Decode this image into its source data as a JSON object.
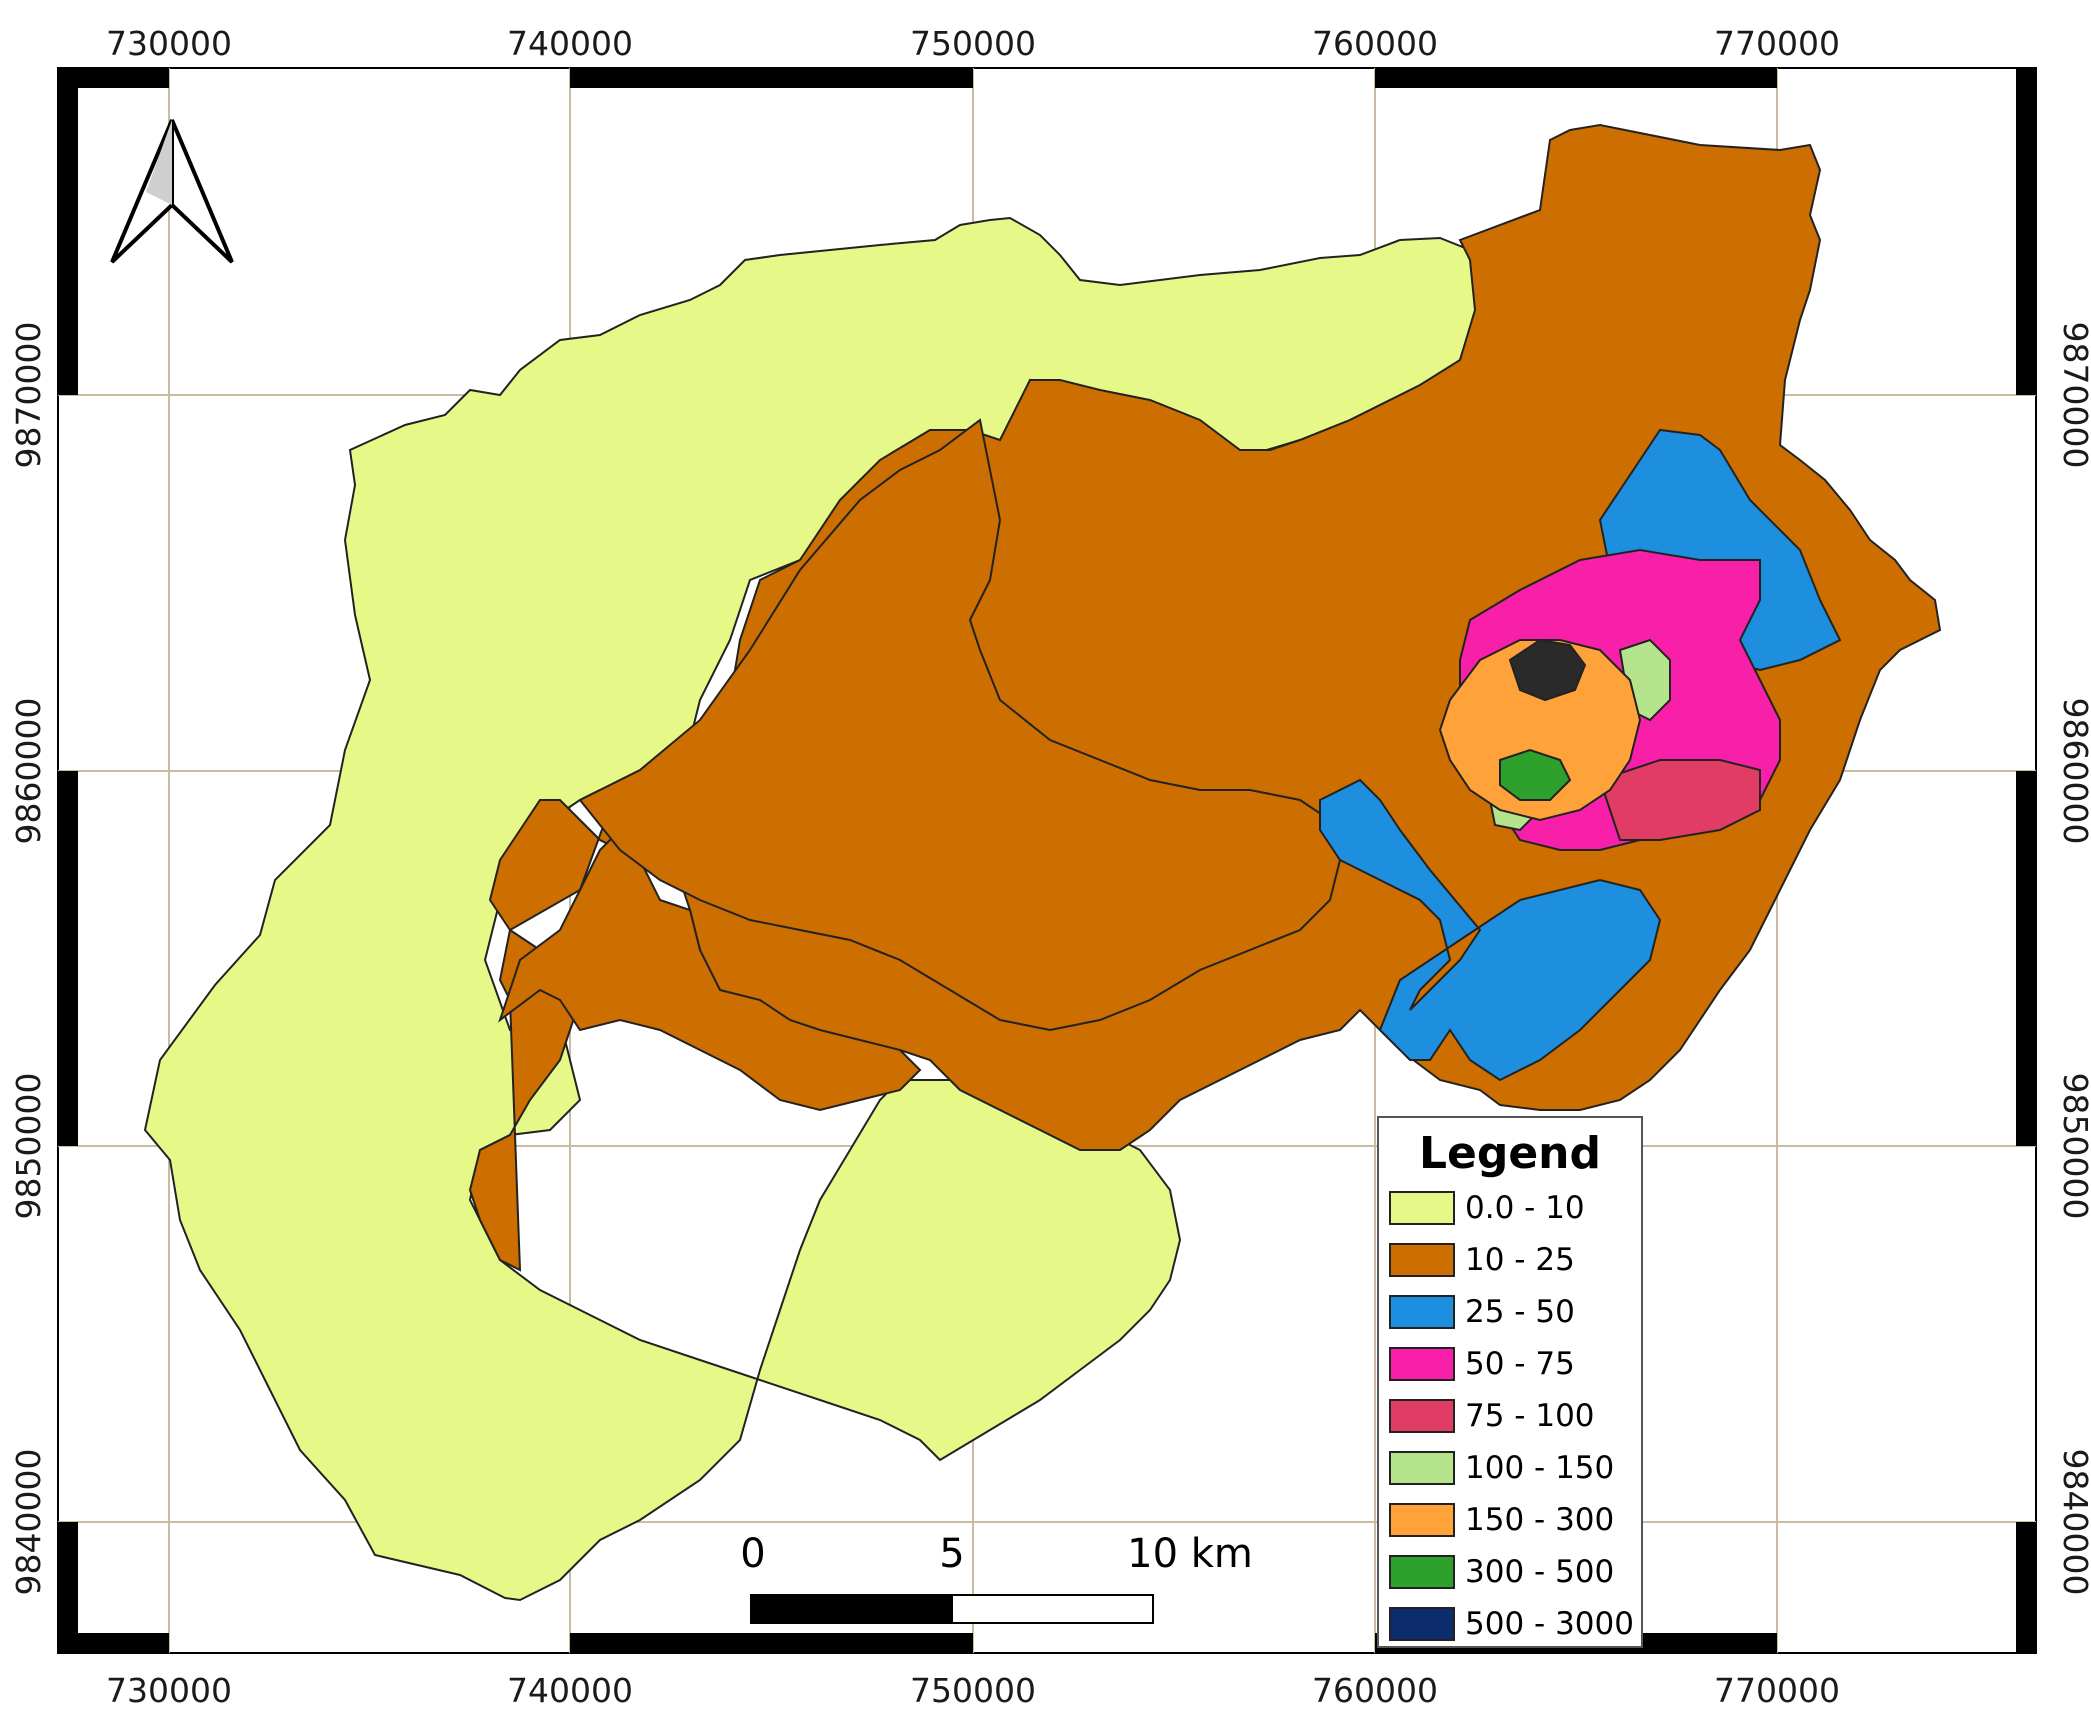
{
  "map": {
    "x_ticks": [
      "730000",
      "740000",
      "750000",
      "760000",
      "770000"
    ],
    "y_ticks": [
      "9870000",
      "9860000",
      "9850000",
      "9840000"
    ],
    "north_arrow": "north-arrow-icon",
    "scale_bar": {
      "labels": [
        "0",
        "5",
        "10 km"
      ]
    },
    "colors": {
      "background_line": "#c9bca0",
      "lightgreen_region": "#e6f887",
      "brown_region": "#cd6e00",
      "blue_region": "#1e8ede",
      "pink_region": "#f81fa9",
      "red_region": "#e13c63",
      "palegreen_region": "#b5e48c",
      "orange_region": "#ffa23a",
      "green_region": "#2ea12c",
      "navy_region": "#0c2c6b",
      "core": "#2a2a2a"
    }
  },
  "legend": {
    "title": "Legend",
    "items": [
      {
        "label": "0.0 - 10",
        "color": "#e6f887"
      },
      {
        "label": "10 - 25",
        "color": "#cd6e00"
      },
      {
        "label": "25 - 50",
        "color": "#1e8ede"
      },
      {
        "label": "50 - 75",
        "color": "#f81fa9"
      },
      {
        "label": "75 - 100",
        "color": "#e13c63"
      },
      {
        "label": "100 - 150",
        "color": "#b5e48c"
      },
      {
        "label": "150 - 300",
        "color": "#ffa23a"
      },
      {
        "label": "300 - 500",
        "color": "#2ea12c"
      },
      {
        "label": "500 - 3000",
        "color": "#0c2c6b"
      }
    ]
  }
}
